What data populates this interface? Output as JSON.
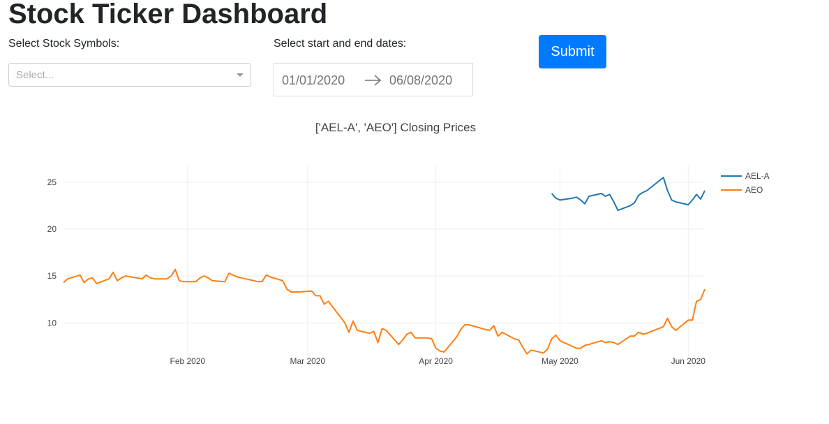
{
  "header": {
    "title": "Stock Ticker Dashboard"
  },
  "controls": {
    "symbols_label": "Select Stock Symbols:",
    "symbols_placeholder": "Select...",
    "dates_label": "Select start and end dates:",
    "start_date": "01/01/2020",
    "end_date": "06/08/2020",
    "submit_label": "Submit"
  },
  "colors": {
    "primary": "#007bff",
    "ael": "#1f77b4",
    "aeo": "#ff7f0e"
  },
  "chart_data": {
    "type": "line",
    "title": "['AEL-A', 'AEO'] Closing Prices",
    "xlabel": "",
    "ylabel": "",
    "xlim": [
      "2020-01-02",
      "2020-06-05"
    ],
    "ylim": [
      6.3,
      26.7
    ],
    "y_ticks": [
      10,
      15,
      20,
      25
    ],
    "x_ticks": [
      {
        "label": "Feb 2020",
        "date": "2020-02-01"
      },
      {
        "label": "Mar 2020",
        "date": "2020-03-01"
      },
      {
        "label": "Apr 2020",
        "date": "2020-04-01"
      },
      {
        "label": "May 2020",
        "date": "2020-05-01"
      },
      {
        "label": "Jun 2020",
        "date": "2020-06-01"
      }
    ],
    "grid": true,
    "legend_position": "top-right",
    "series": [
      {
        "name": "AEL-A",
        "color": "#1f77b4",
        "x": [
          "2020-04-29",
          "2020-04-30",
          "2020-05-01",
          "2020-05-04",
          "2020-05-05",
          "2020-05-06",
          "2020-05-07",
          "2020-05-08",
          "2020-05-11",
          "2020-05-12",
          "2020-05-13",
          "2020-05-14",
          "2020-05-15",
          "2020-05-18",
          "2020-05-19",
          "2020-05-20",
          "2020-05-21",
          "2020-05-22",
          "2020-05-26",
          "2020-05-27",
          "2020-05-28",
          "2020-05-29",
          "2020-06-01",
          "2020-06-02",
          "2020-06-03",
          "2020-06-04",
          "2020-06-05"
        ],
        "y": [
          23.8,
          23.3,
          23.1,
          23.3,
          23.4,
          23.1,
          22.7,
          23.5,
          23.8,
          23.5,
          23.7,
          22.9,
          22.0,
          22.5,
          22.8,
          23.6,
          23.9,
          24.1,
          25.5,
          24.1,
          23.1,
          22.9,
          22.6,
          23.1,
          23.7,
          23.2,
          24.1
        ]
      },
      {
        "name": "AEO",
        "color": "#ff7f0e",
        "x": [
          "2020-01-02",
          "2020-01-03",
          "2020-01-06",
          "2020-01-07",
          "2020-01-08",
          "2020-01-09",
          "2020-01-10",
          "2020-01-13",
          "2020-01-14",
          "2020-01-15",
          "2020-01-16",
          "2020-01-17",
          "2020-01-21",
          "2020-01-22",
          "2020-01-23",
          "2020-01-24",
          "2020-01-27",
          "2020-01-28",
          "2020-01-29",
          "2020-01-30",
          "2020-01-31",
          "2020-02-03",
          "2020-02-04",
          "2020-02-05",
          "2020-02-06",
          "2020-02-07",
          "2020-02-10",
          "2020-02-11",
          "2020-02-12",
          "2020-02-13",
          "2020-02-14",
          "2020-02-18",
          "2020-02-19",
          "2020-02-20",
          "2020-02-21",
          "2020-02-24",
          "2020-02-25",
          "2020-02-26",
          "2020-02-27",
          "2020-02-28",
          "2020-03-02",
          "2020-03-03",
          "2020-03-04",
          "2020-03-05",
          "2020-03-06",
          "2020-03-09",
          "2020-03-10",
          "2020-03-11",
          "2020-03-12",
          "2020-03-13",
          "2020-03-16",
          "2020-03-17",
          "2020-03-18",
          "2020-03-19",
          "2020-03-20",
          "2020-03-23",
          "2020-03-24",
          "2020-03-25",
          "2020-03-26",
          "2020-03-27",
          "2020-03-30",
          "2020-03-31",
          "2020-04-01",
          "2020-04-02",
          "2020-04-03",
          "2020-04-06",
          "2020-04-07",
          "2020-04-08",
          "2020-04-09",
          "2020-04-13",
          "2020-04-14",
          "2020-04-15",
          "2020-04-16",
          "2020-04-17",
          "2020-04-20",
          "2020-04-21",
          "2020-04-22",
          "2020-04-23",
          "2020-04-24",
          "2020-04-27",
          "2020-04-28",
          "2020-04-29",
          "2020-04-30",
          "2020-05-01",
          "2020-05-04",
          "2020-05-05",
          "2020-05-06",
          "2020-05-07",
          "2020-05-08",
          "2020-05-11",
          "2020-05-12",
          "2020-05-13",
          "2020-05-14",
          "2020-05-15",
          "2020-05-18",
          "2020-05-19",
          "2020-05-20",
          "2020-05-21",
          "2020-05-22",
          "2020-05-26",
          "2020-05-27",
          "2020-05-28",
          "2020-05-29",
          "2020-06-01",
          "2020-06-02",
          "2020-06-03",
          "2020-06-04",
          "2020-06-05"
        ],
        "y": [
          14.3,
          14.7,
          15.1,
          14.3,
          14.7,
          14.8,
          14.2,
          14.7,
          15.4,
          14.5,
          14.8,
          15.0,
          14.7,
          15.1,
          14.8,
          14.7,
          14.7,
          15.0,
          15.7,
          14.5,
          14.4,
          14.4,
          14.8,
          15.0,
          14.8,
          14.5,
          14.4,
          15.3,
          15.1,
          14.9,
          14.8,
          14.4,
          14.4,
          15.1,
          14.9,
          14.5,
          13.6,
          13.3,
          13.3,
          13.3,
          13.4,
          12.9,
          12.9,
          12.0,
          12.3,
          10.6,
          10.0,
          9.0,
          10.2,
          9.2,
          8.9,
          9.1,
          7.9,
          9.4,
          9.2,
          7.7,
          8.2,
          8.8,
          9.0,
          8.4,
          8.4,
          8.3,
          7.3,
          7.0,
          6.9,
          8.5,
          9.3,
          9.8,
          9.8,
          9.3,
          9.2,
          9.7,
          8.6,
          9.0,
          8.3,
          8.2,
          7.4,
          6.7,
          7.1,
          6.8,
          7.2,
          8.3,
          8.7,
          8.1,
          7.5,
          7.3,
          7.3,
          7.6,
          7.7,
          8.1,
          7.9,
          8.0,
          7.9,
          7.7,
          8.6,
          8.6,
          9.0,
          8.8,
          8.9,
          9.6,
          10.5,
          9.6,
          9.2,
          10.3,
          10.3,
          12.3,
          12.5,
          13.6
        ]
      }
    ]
  }
}
